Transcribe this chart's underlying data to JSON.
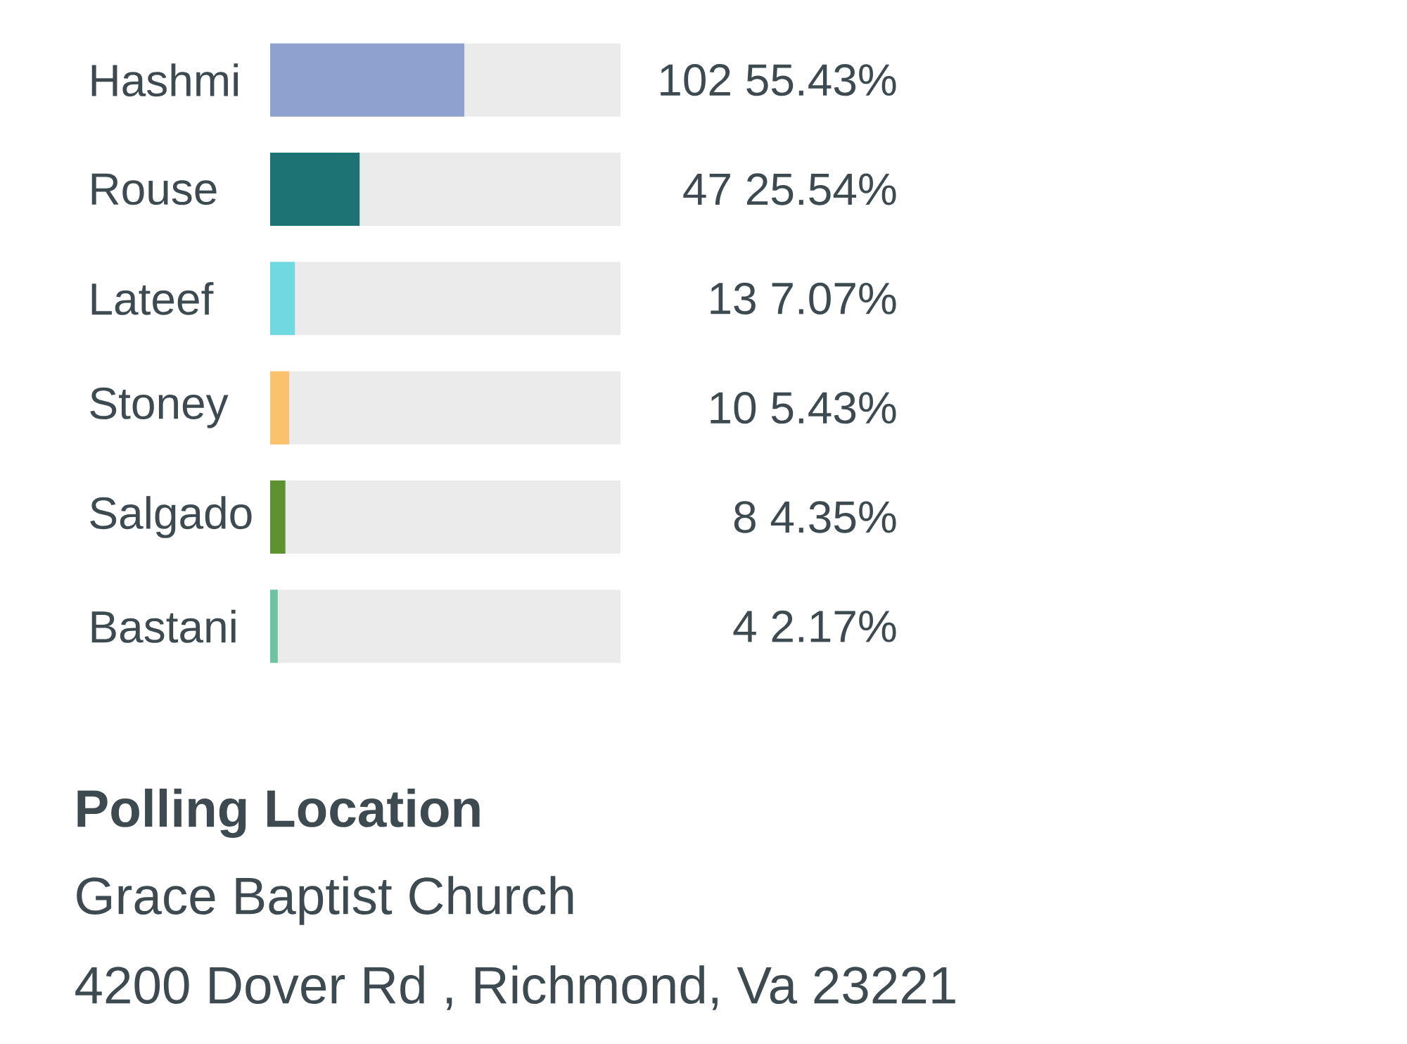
{
  "chart_data": {
    "type": "bar",
    "orientation": "horizontal",
    "categories": [
      "Hashmi",
      "Rouse",
      "Lateef",
      "Stoney",
      "Salgado",
      "Bastani"
    ],
    "values": [
      55.43,
      25.54,
      7.07,
      5.43,
      4.35,
      2.17
    ],
    "colors": [
      "#8fa1cf",
      "#1d7373",
      "#6fd8e0",
      "#fbc26e",
      "#5e9130",
      "#6fc2a4"
    ],
    "value_labels": [
      "102 55.43%",
      "47 25.54%",
      "13 7.07%",
      "10 5.43%",
      "8 4.35%",
      "4 2.17%"
    ],
    "xlim": [
      0,
      100
    ],
    "tick_labels": "y",
    "annotations": [
      "Polling Location",
      "Grace Baptist Church",
      "4200 Dover Rd , Richmond, Va 23221"
    ]
  }
}
